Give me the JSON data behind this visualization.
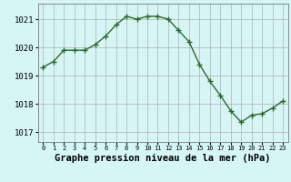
{
  "x": [
    0,
    1,
    2,
    3,
    4,
    5,
    6,
    7,
    8,
    9,
    10,
    11,
    12,
    13,
    14,
    15,
    16,
    17,
    18,
    19,
    20,
    21,
    22,
    23
  ],
  "y": [
    1019.3,
    1019.5,
    1019.9,
    1019.9,
    1019.9,
    1020.1,
    1020.4,
    1020.8,
    1021.1,
    1021.0,
    1021.1,
    1021.1,
    1021.0,
    1020.6,
    1020.2,
    1019.4,
    1018.8,
    1018.3,
    1017.75,
    1017.35,
    1017.6,
    1017.65,
    1017.85,
    1018.1
  ],
  "line_color": "#2d6a2d",
  "marker": "+",
  "marker_size": 4,
  "marker_color": "#2d6a2d",
  "bg_color": "#d6f5f5",
  "grid_color": "#b0b0b0",
  "xlabel": "Graphe pression niveau de la mer (hPa)",
  "xlabel_fontsize": 7.5,
  "ytick_labels": [
    "1017",
    "1018",
    "1019",
    "1020",
    "1021"
  ],
  "yticks": [
    1017,
    1018,
    1019,
    1020,
    1021
  ],
  "ylim": [
    1016.65,
    1021.55
  ],
  "xlim": [
    -0.5,
    23.5
  ],
  "line_width": 1.0,
  "xtick_fontsize": 5.0,
  "ytick_fontsize": 6.5
}
